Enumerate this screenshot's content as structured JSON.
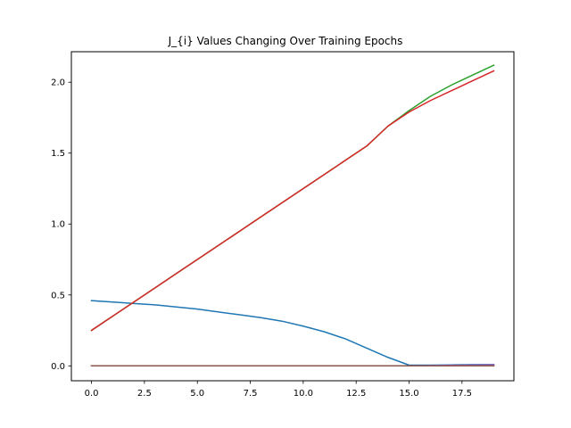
{
  "chart_data": {
    "type": "line",
    "title": "J_{i} Values Changing Over Training Epochs",
    "xlabel": "",
    "ylabel": "",
    "xlim": [
      -0.95,
      19.95
    ],
    "ylim": [
      -0.105,
      2.215
    ],
    "xticks": [
      0,
      2.5,
      5,
      7.5,
      10,
      12.5,
      15,
      17.5
    ],
    "xtick_labels": [
      "0.0",
      "2.5",
      "5.0",
      "7.5",
      "10.0",
      "12.5",
      "15.0",
      "17.5"
    ],
    "yticks": [
      0,
      0.5,
      1,
      1.5,
      2
    ],
    "ytick_labels": [
      "0.0",
      "0.5",
      "1.0",
      "1.5",
      "2.0"
    ],
    "grid": false,
    "x": [
      0,
      1,
      2,
      3,
      4,
      5,
      6,
      7,
      8,
      9,
      10,
      11,
      12,
      13,
      14,
      15,
      16,
      17,
      18,
      19
    ],
    "series": [
      {
        "color": "#1f77b4",
        "values": [
          0.46,
          0.45,
          0.44,
          0.43,
          0.415,
          0.4,
          0.38,
          0.36,
          0.34,
          0.315,
          0.28,
          0.24,
          0.19,
          0.125,
          0.06,
          0.005,
          0.005,
          0.007,
          0.009,
          0.01
        ]
      },
      {
        "color": "#ff7f0e",
        "values": [
          0.0,
          0.0,
          0.0,
          0.0,
          0.0,
          0.0,
          0.0,
          0.0,
          0.0,
          0.0,
          0.0,
          0.0,
          0.0,
          0.0,
          0.0,
          0.0,
          0.0,
          0.0,
          0.0,
          0.0
        ]
      },
      {
        "color": "#9467bd",
        "values": [
          0.0,
          0.0,
          0.0,
          0.0,
          0.0,
          0.0,
          0.0,
          0.0,
          0.0,
          0.0,
          0.0,
          0.0,
          0.0,
          0.0,
          0.0,
          0.0,
          0.002,
          0.004,
          0.006,
          0.008
        ]
      },
      {
        "color": "#2ca02c",
        "values": [
          0.25,
          0.35,
          0.45,
          0.55,
          0.65,
          0.75,
          0.85,
          0.95,
          1.05,
          1.15,
          1.25,
          1.35,
          1.45,
          1.55,
          1.69,
          1.8,
          1.9,
          1.98,
          2.05,
          2.12
        ]
      },
      {
        "color": "#d62728",
        "values": [
          0.25,
          0.35,
          0.45,
          0.55,
          0.65,
          0.75,
          0.85,
          0.95,
          1.05,
          1.15,
          1.25,
          1.35,
          1.45,
          1.55,
          1.69,
          1.79,
          1.87,
          1.94,
          2.01,
          2.08
        ]
      },
      {
        "color": "#8c564b",
        "values": [
          0.0,
          0.0,
          0.0,
          0.0,
          0.0,
          0.0,
          0.0,
          0.0,
          0.0,
          0.0,
          0.0,
          0.0,
          0.0,
          0.0,
          0.0,
          0.0,
          0.0,
          0.0,
          0.0,
          0.0
        ]
      }
    ]
  }
}
